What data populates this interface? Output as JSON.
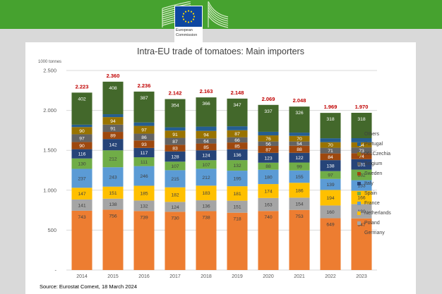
{
  "header": {
    "logo_line1": "European",
    "logo_line2": "Commission",
    "brand_color": "#46a22f"
  },
  "chart_data": {
    "type": "bar",
    "stacked": true,
    "title": "Intra-EU trade of tomatoes: Main importers",
    "ylabel": "1000 tonnes",
    "xlabel": "",
    "ylim": [
      0,
      2500
    ],
    "yticks": [
      0,
      500,
      1000,
      1500,
      2000,
      2500
    ],
    "ytick_labels": [
      "-",
      "500",
      "1.000",
      "1.500",
      "2.000",
      "2.500"
    ],
    "grid": true,
    "legend_position": "right",
    "categories": [
      "2014",
      "2015",
      "2016",
      "2017",
      "2018",
      "2019",
      "2020",
      "2021",
      "2022",
      "2023"
    ],
    "totals": [
      2223,
      2360,
      2236,
      2142,
      2163,
      2148,
      2069,
      2048,
      1969,
      1970
    ],
    "total_labels": [
      "2.223",
      "2.360",
      "2.236",
      "2.142",
      "2.163",
      "2.148",
      "2.069",
      "2.048",
      "1.969",
      "1.970"
    ],
    "total_label_color": "#c00000",
    "series": [
      {
        "name": "Germany",
        "color": "#ed7d31",
        "label_color": "#404040",
        "show_labels": true,
        "values": [
          743,
          756,
          739,
          730,
          738,
          718,
          740,
          753,
          649,
          647
        ]
      },
      {
        "name": "Poland",
        "color": "#a5a5a5",
        "label_color": "#404040",
        "show_labels": true,
        "values": [
          141,
          138,
          132,
          124,
          136,
          151,
          163,
          154,
          160,
          180
        ]
      },
      {
        "name": "Netherlands",
        "color": "#ffc000",
        "label_color": "#404040",
        "show_labels": true,
        "values": [
          147,
          151,
          185,
          182,
          183,
          181,
          174,
          186,
          194,
          166
        ]
      },
      {
        "name": "France",
        "color": "#5b9bd5",
        "label_color": "#404040",
        "show_labels": true,
        "values": [
          237,
          243,
          246,
          215,
          212,
          195,
          180,
          155,
          139,
          133
        ]
      },
      {
        "name": "Spain",
        "color": "#70ad47",
        "label_color": "#404040",
        "show_labels": true,
        "values": [
          130,
          212,
          111,
          107,
          107,
          132,
          88,
          99,
          97,
          132
        ]
      },
      {
        "name": "Italy",
        "color": "#264478",
        "label_color": "#ffffff",
        "show_labels": true,
        "values": [
          116,
          142,
          117,
          128,
          124,
          136,
          123,
          122,
          138,
          131
        ]
      },
      {
        "name": "Sweden",
        "color": "#9e480e",
        "label_color": "#ffffff",
        "show_labels": true,
        "values": [
          90,
          89,
          93,
          83,
          85,
          85,
          87,
          88,
          84,
          74
        ]
      },
      {
        "name": "Belgium",
        "color": "#636363",
        "label_color": "#ffffff",
        "show_labels": true,
        "values": [
          97,
          91,
          86,
          87,
          64,
          66,
          56,
          54,
          71,
          73
        ]
      },
      {
        "name": "061Czechia",
        "color": "#997300",
        "label_color": "#ffffff",
        "show_labels": true,
        "values": [
          90,
          94,
          97,
          91,
          94,
          87,
          76,
          70,
          70,
          64
        ]
      },
      {
        "name": "Portugal",
        "color": "#255e91",
        "label_color": "#ffffff",
        "show_labels": false,
        "values": [
          30,
          36,
          43,
          41,
          54,
          50,
          45,
          41,
          49,
          52
        ]
      },
      {
        "name": "Others",
        "color": "#43682b",
        "label_color": "#ffffff",
        "show_labels": true,
        "values": [
          402,
          408,
          387,
          354,
          366,
          347,
          337,
          326,
          318,
          318
        ]
      }
    ],
    "legend_order": [
      "Others",
      "Portugal",
      "061Czechia",
      "Belgium",
      "Sweden",
      "Italy",
      "Spain",
      "France",
      "Netherlands",
      "Poland",
      "Germany"
    ],
    "source": "Source: Eurostat Comext, 18 March 2024"
  }
}
